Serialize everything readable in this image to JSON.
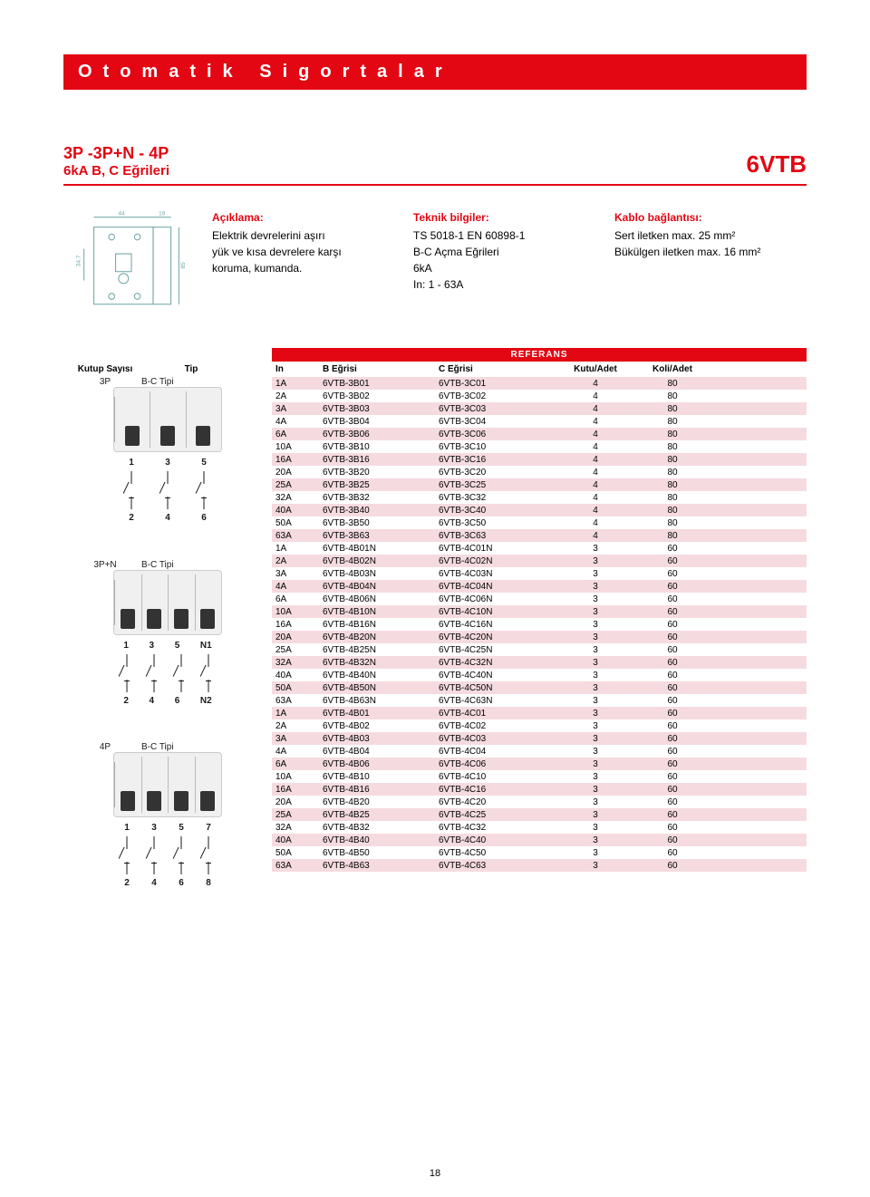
{
  "header": "Otomatik Sigortalar",
  "title": {
    "main": "3P -3P+N - 4P",
    "sub": "6kA    B, C Eğrileri",
    "brand": "6VTB"
  },
  "info": {
    "col1": {
      "h": "Açıklama:",
      "lines": [
        "Elektrik devrelerini aşırı",
        "yük ve kısa devrelere karşı",
        "koruma, kumanda."
      ]
    },
    "col2": {
      "h": "Teknik bilgiler:",
      "lines": [
        "TS 5018-1  EN 60898-1",
        "B-C Açma Eğrileri",
        "6kA",
        "In: 1 - 63A"
      ]
    },
    "col3": {
      "h": "Kablo bağlantısı:",
      "lines": [
        "Sert iletken max. 25 mm²",
        "Bükülgen iletken max. 16 mm²"
      ]
    }
  },
  "diagrams": {
    "g1": {
      "top": [
        "1",
        "3",
        "5"
      ],
      "bottom": [
        "2",
        "4",
        "6"
      ]
    },
    "g2": {
      "top": [
        "1",
        "3",
        "5",
        "N1"
      ],
      "bottom": [
        "2",
        "4",
        "6",
        "N2"
      ]
    },
    "g3": {
      "top": [
        "1",
        "3",
        "5",
        "7"
      ],
      "bottom": [
        "2",
        "4",
        "6",
        "8"
      ]
    }
  },
  "table": {
    "ref": "REFERANS",
    "headers": {
      "kutup": "Kutup Sayısı",
      "tip": "Tip",
      "in": "In",
      "beg": "B Eğrisi",
      "ceg": "C Eğrisi",
      "kutu": "Kutu/Adet",
      "koli": "Koli/Adet"
    },
    "groups": [
      {
        "kutup": "3P",
        "tip": "B-C Tipi",
        "rows": [
          {
            "in": "1A",
            "b": "6VTB-3B01",
            "c": "6VTB-3C01",
            "kutu": "4",
            "koli": "80"
          },
          {
            "in": "2A",
            "b": "6VTB-3B02",
            "c": "6VTB-3C02",
            "kutu": "4",
            "koli": "80"
          },
          {
            "in": "3A",
            "b": "6VTB-3B03",
            "c": "6VTB-3C03",
            "kutu": "4",
            "koli": "80"
          },
          {
            "in": "4A",
            "b": "6VTB-3B04",
            "c": "6VTB-3C04",
            "kutu": "4",
            "koli": "80"
          },
          {
            "in": "6A",
            "b": "6VTB-3B06",
            "c": "6VTB-3C06",
            "kutu": "4",
            "koli": "80"
          },
          {
            "in": "10A",
            "b": "6VTB-3B10",
            "c": "6VTB-3C10",
            "kutu": "4",
            "koli": "80"
          },
          {
            "in": "16A",
            "b": "6VTB-3B16",
            "c": "6VTB-3C16",
            "kutu": "4",
            "koli": "80"
          },
          {
            "in": "20A",
            "b": "6VTB-3B20",
            "c": "6VTB-3C20",
            "kutu": "4",
            "koli": "80"
          },
          {
            "in": "25A",
            "b": "6VTB-3B25",
            "c": "6VTB-3C25",
            "kutu": "4",
            "koli": "80"
          },
          {
            "in": "32A",
            "b": "6VTB-3B32",
            "c": "6VTB-3C32",
            "kutu": "4",
            "koli": "80"
          },
          {
            "in": "40A",
            "b": "6VTB-3B40",
            "c": "6VTB-3C40",
            "kutu": "4",
            "koli": "80"
          },
          {
            "in": "50A",
            "b": "6VTB-3B50",
            "c": "6VTB-3C50",
            "kutu": "4",
            "koli": "80"
          },
          {
            "in": "63A",
            "b": "6VTB-3B63",
            "c": "6VTB-3C63",
            "kutu": "4",
            "koli": "80"
          }
        ]
      },
      {
        "kutup": "3P+N",
        "tip": "B-C Tipi",
        "rows": [
          {
            "in": "1A",
            "b": "6VTB-4B01N",
            "c": "6VTB-4C01N",
            "kutu": "3",
            "koli": "60"
          },
          {
            "in": "2A",
            "b": "6VTB-4B02N",
            "c": "6VTB-4C02N",
            "kutu": "3",
            "koli": "60"
          },
          {
            "in": "3A",
            "b": "6VTB-4B03N",
            "c": "6VTB-4C03N",
            "kutu": "3",
            "koli": "60"
          },
          {
            "in": "4A",
            "b": "6VTB-4B04N",
            "c": "6VTB-4C04N",
            "kutu": "3",
            "koli": "60"
          },
          {
            "in": "6A",
            "b": "6VTB-4B06N",
            "c": "6VTB-4C06N",
            "kutu": "3",
            "koli": "60"
          },
          {
            "in": "10A",
            "b": "6VTB-4B10N",
            "c": "6VTB-4C10N",
            "kutu": "3",
            "koli": "60"
          },
          {
            "in": "16A",
            "b": "6VTB-4B16N",
            "c": "6VTB-4C16N",
            "kutu": "3",
            "koli": "60"
          },
          {
            "in": "20A",
            "b": "6VTB-4B20N",
            "c": "6VTB-4C20N",
            "kutu": "3",
            "koli": "60"
          },
          {
            "in": "25A",
            "b": "6VTB-4B25N",
            "c": "6VTB-4C25N",
            "kutu": "3",
            "koli": "60"
          },
          {
            "in": "32A",
            "b": "6VTB-4B32N",
            "c": "6VTB-4C32N",
            "kutu": "3",
            "koli": "60"
          },
          {
            "in": "40A",
            "b": "6VTB-4B40N",
            "c": "6VTB-4C40N",
            "kutu": "3",
            "koli": "60"
          },
          {
            "in": "50A",
            "b": "6VTB-4B50N",
            "c": "6VTB-4C50N",
            "kutu": "3",
            "koli": "60"
          },
          {
            "in": "63A",
            "b": "6VTB-4B63N",
            "c": "6VTB-4C63N",
            "kutu": "3",
            "koli": "60"
          }
        ]
      },
      {
        "kutup": "4P",
        "tip": "B-C Tipi",
        "rows": [
          {
            "in": "1A",
            "b": "6VTB-4B01",
            "c": "6VTB-4C01",
            "kutu": "3",
            "koli": "60"
          },
          {
            "in": "2A",
            "b": "6VTB-4B02",
            "c": "6VTB-4C02",
            "kutu": "3",
            "koli": "60"
          },
          {
            "in": "3A",
            "b": "6VTB-4B03",
            "c": "6VTB-4C03",
            "kutu": "3",
            "koli": "60"
          },
          {
            "in": "4A",
            "b": "6VTB-4B04",
            "c": "6VTB-4C04",
            "kutu": "3",
            "koli": "60"
          },
          {
            "in": "6A",
            "b": "6VTB-4B06",
            "c": "6VTB-4C06",
            "kutu": "3",
            "koli": "60"
          },
          {
            "in": "10A",
            "b": "6VTB-4B10",
            "c": "6VTB-4C10",
            "kutu": "3",
            "koli": "60"
          },
          {
            "in": "16A",
            "b": "6VTB-4B16",
            "c": "6VTB-4C16",
            "kutu": "3",
            "koli": "60"
          },
          {
            "in": "20A",
            "b": "6VTB-4B20",
            "c": "6VTB-4C20",
            "kutu": "3",
            "koli": "60"
          },
          {
            "in": "25A",
            "b": "6VTB-4B25",
            "c": "6VTB-4C25",
            "kutu": "3",
            "koli": "60"
          },
          {
            "in": "32A",
            "b": "6VTB-4B32",
            "c": "6VTB-4C32",
            "kutu": "3",
            "koli": "60"
          },
          {
            "in": "40A",
            "b": "6VTB-4B40",
            "c": "6VTB-4C40",
            "kutu": "3",
            "koli": "60"
          },
          {
            "in": "50A",
            "b": "6VTB-4B50",
            "c": "6VTB-4C50",
            "kutu": "3",
            "koli": "60"
          },
          {
            "in": "63A",
            "b": "6VTB-4B63",
            "c": "6VTB-4C63",
            "kutu": "3",
            "koli": "60"
          }
        ]
      }
    ]
  },
  "pageNumber": "18",
  "colors": {
    "accent": "#e30613",
    "shade": "#f5dbe0",
    "text": "#1a1a1a"
  }
}
